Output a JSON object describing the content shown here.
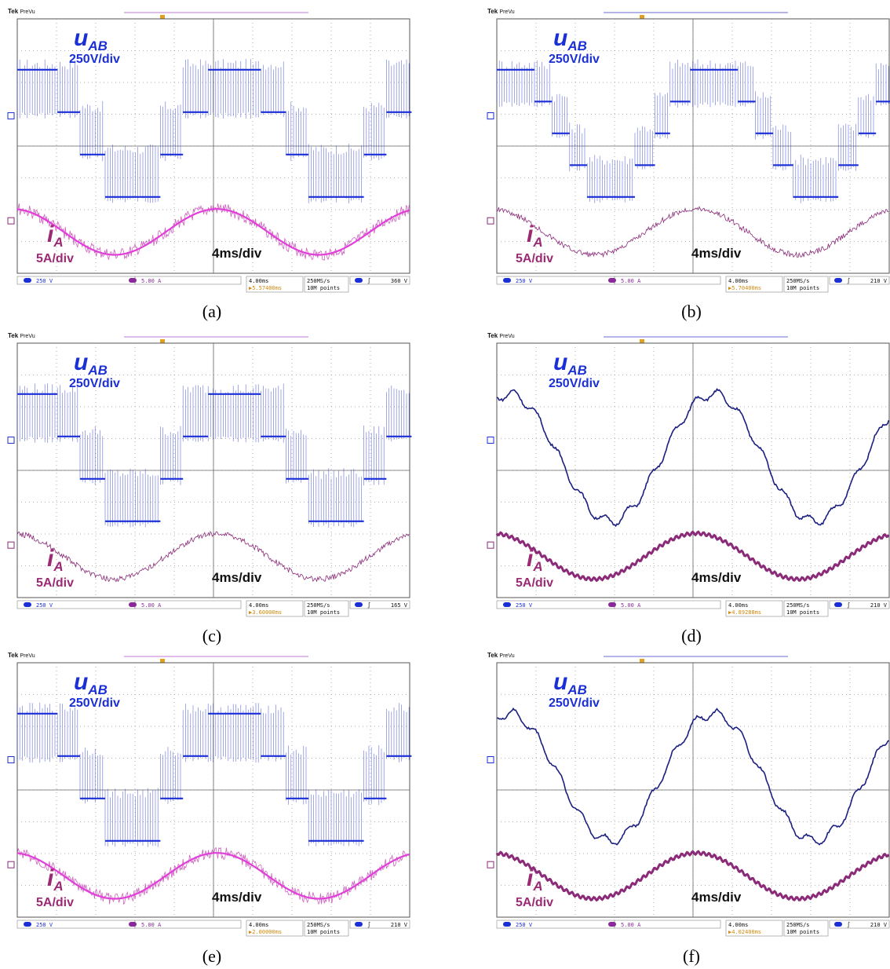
{
  "figure": {
    "colors": {
      "voltage": "#1b2fd6",
      "current": "#c23bb0",
      "current_dark": "#8a2a78",
      "grid": "#999999"
    },
    "scope_header": {
      "brand": "Tek",
      "mode": "PreVu"
    }
  },
  "chart_data": [
    {
      "id": "a",
      "type": "line",
      "caption": "(a)",
      "labels": {
        "voltage_name": "u",
        "voltage_sub": "AB",
        "voltage_scale": "250V/div",
        "current_name": "i",
        "current_sub": "A",
        "current_scale": "5A/div",
        "time_scale": "4ms/div"
      },
      "waveform": {
        "voltage": "pwm",
        "levels": 4,
        "current": "bright"
      },
      "status": {
        "ch1": "250 V",
        "ch3": "5.00 A",
        "timebase": "4.00ms",
        "delay": "5.57400ms",
        "rate": "250MS/s",
        "points": "10M points",
        "trigger": "360 V"
      }
    },
    {
      "id": "b",
      "type": "line",
      "caption": "(b)",
      "labels": {
        "voltage_name": "u",
        "voltage_sub": "AB",
        "voltage_scale": "250V/div",
        "current_name": "i",
        "current_sub": "A",
        "current_scale": "5A/div",
        "time_scale": "4ms/div"
      },
      "waveform": {
        "voltage": "pwm",
        "levels": 5,
        "current": "dark"
      },
      "status": {
        "ch1": "250 V",
        "ch3": "5.00 A",
        "timebase": "4.00ms",
        "delay": "5.70400ms",
        "rate": "250MS/s",
        "points": "10M points",
        "trigger": "210 V"
      }
    },
    {
      "id": "c",
      "type": "line",
      "caption": "(c)",
      "labels": {
        "voltage_name": "u",
        "voltage_sub": "AB",
        "voltage_scale": "250V/div",
        "current_name": "i",
        "current_sub": "A",
        "current_scale": "5A/div",
        "time_scale": "4ms/div"
      },
      "waveform": {
        "voltage": "pwm",
        "levels": 4,
        "current": "dark"
      },
      "status": {
        "ch1": "250 V",
        "ch3": "5.00 A",
        "timebase": "4.00ms",
        "delay": "3.60000ms",
        "rate": "250MS/s",
        "points": "10M points",
        "trigger": "165 V"
      }
    },
    {
      "id": "d",
      "type": "line",
      "caption": "(d)",
      "labels": {
        "voltage_name": "u",
        "voltage_sub": "AB",
        "voltage_scale": "250V/div",
        "current_name": "i",
        "current_sub": "A",
        "current_scale": "5A/div",
        "time_scale": "4ms/div"
      },
      "waveform": {
        "voltage": "sine",
        "current": "thick"
      },
      "status": {
        "ch1": "250 V",
        "ch3": "5.00 A",
        "timebase": "4.00ms",
        "delay": "4.89288ms",
        "rate": "250MS/s",
        "points": "10M points",
        "trigger": "210 V"
      }
    },
    {
      "id": "e",
      "type": "line",
      "caption": "(e)",
      "labels": {
        "voltage_name": "u",
        "voltage_sub": "AB",
        "voltage_scale": "250V/div",
        "current_name": "i",
        "current_sub": "A",
        "current_scale": "5A/div",
        "time_scale": "4ms/div"
      },
      "waveform": {
        "voltage": "pwm",
        "levels": 4,
        "current": "bright"
      },
      "status": {
        "ch1": "250 V",
        "ch3": "5.00 A",
        "timebase": "4.00ms",
        "delay": "2.00000ms",
        "rate": "250MS/s",
        "points": "10M points",
        "trigger": "210 V"
      }
    },
    {
      "id": "f",
      "type": "line",
      "caption": "(f)",
      "labels": {
        "voltage_name": "u",
        "voltage_sub": "AB",
        "voltage_scale": "250V/div",
        "current_name": "i",
        "current_sub": "A",
        "current_scale": "5A/div",
        "time_scale": "4ms/div"
      },
      "waveform": {
        "voltage": "sine",
        "current": "thick"
      },
      "status": {
        "ch1": "250 V",
        "ch3": "5.00 A",
        "timebase": "4.00ms",
        "delay": "4.02400ms",
        "rate": "250MS/s",
        "points": "10M points",
        "trigger": "210 V"
      }
    }
  ]
}
